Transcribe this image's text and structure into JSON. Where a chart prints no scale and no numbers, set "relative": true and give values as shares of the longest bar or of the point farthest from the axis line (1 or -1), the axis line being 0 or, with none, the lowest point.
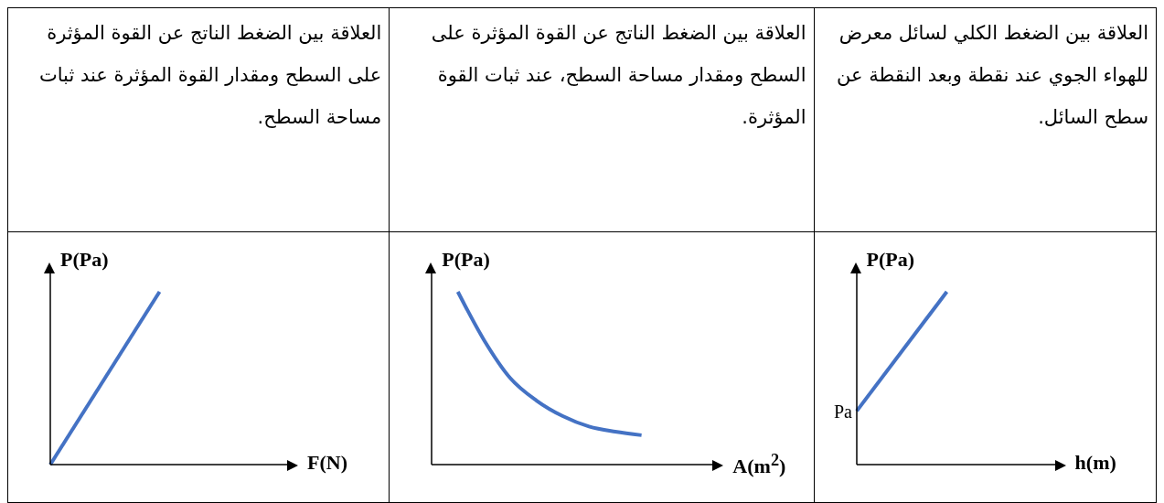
{
  "chart_data": [
    {
      "type": "line",
      "title": "العلاقة بين الضغط الكلي لسائل معرض للهواء الجوي عند نقطة وبعد النقطة عن سطح السائل.",
      "xlabel": "h(m)",
      "ylabel": "P(Pa)",
      "relative": true,
      "categories": [
        null,
        null,
        null
      ],
      "series": [
        {
          "color": "#4472c4",
          "values": [
            0.31,
            1,
            null
          ]
        }
      ],
      "annotations": [
        "Pa"
      ]
    },
    {
      "type": "line",
      "title": "العلاقة بين الضغط الناتج عن القوة المؤثرة على السطح ومقدار مساحة السطح، عند ثبات القوة المؤثرة.",
      "xlabel": "A(m$^{2}$)",
      "ylabel": "P(Pa)",
      "relative": true,
      "categories": [
        null,
        null,
        null,
        null,
        null,
        null,
        null,
        null,
        null,
        null,
        null
      ],
      "series": [
        {
          "color": "#4472c4",
          "values": [
            null,
            1,
            0.72,
            0.5,
            0.37,
            0.28,
            0.22,
            0.19,
            0.17,
            null,
            null
          ]
        }
      ]
    },
    {
      "type": "line",
      "title": "العلاقة بين الضغط الناتج عن القوة المؤثرة على السطح ومقدار القوة المؤثرة عند ثبات مساحة السطح.",
      "xlabel": "F(N)",
      "ylabel": "P(Pa)",
      "relative": true,
      "categories": [
        null,
        null,
        null
      ],
      "series": [
        {
          "color": "#4472c4",
          "values": [
            0,
            1,
            null
          ]
        }
      ]
    }
  ]
}
